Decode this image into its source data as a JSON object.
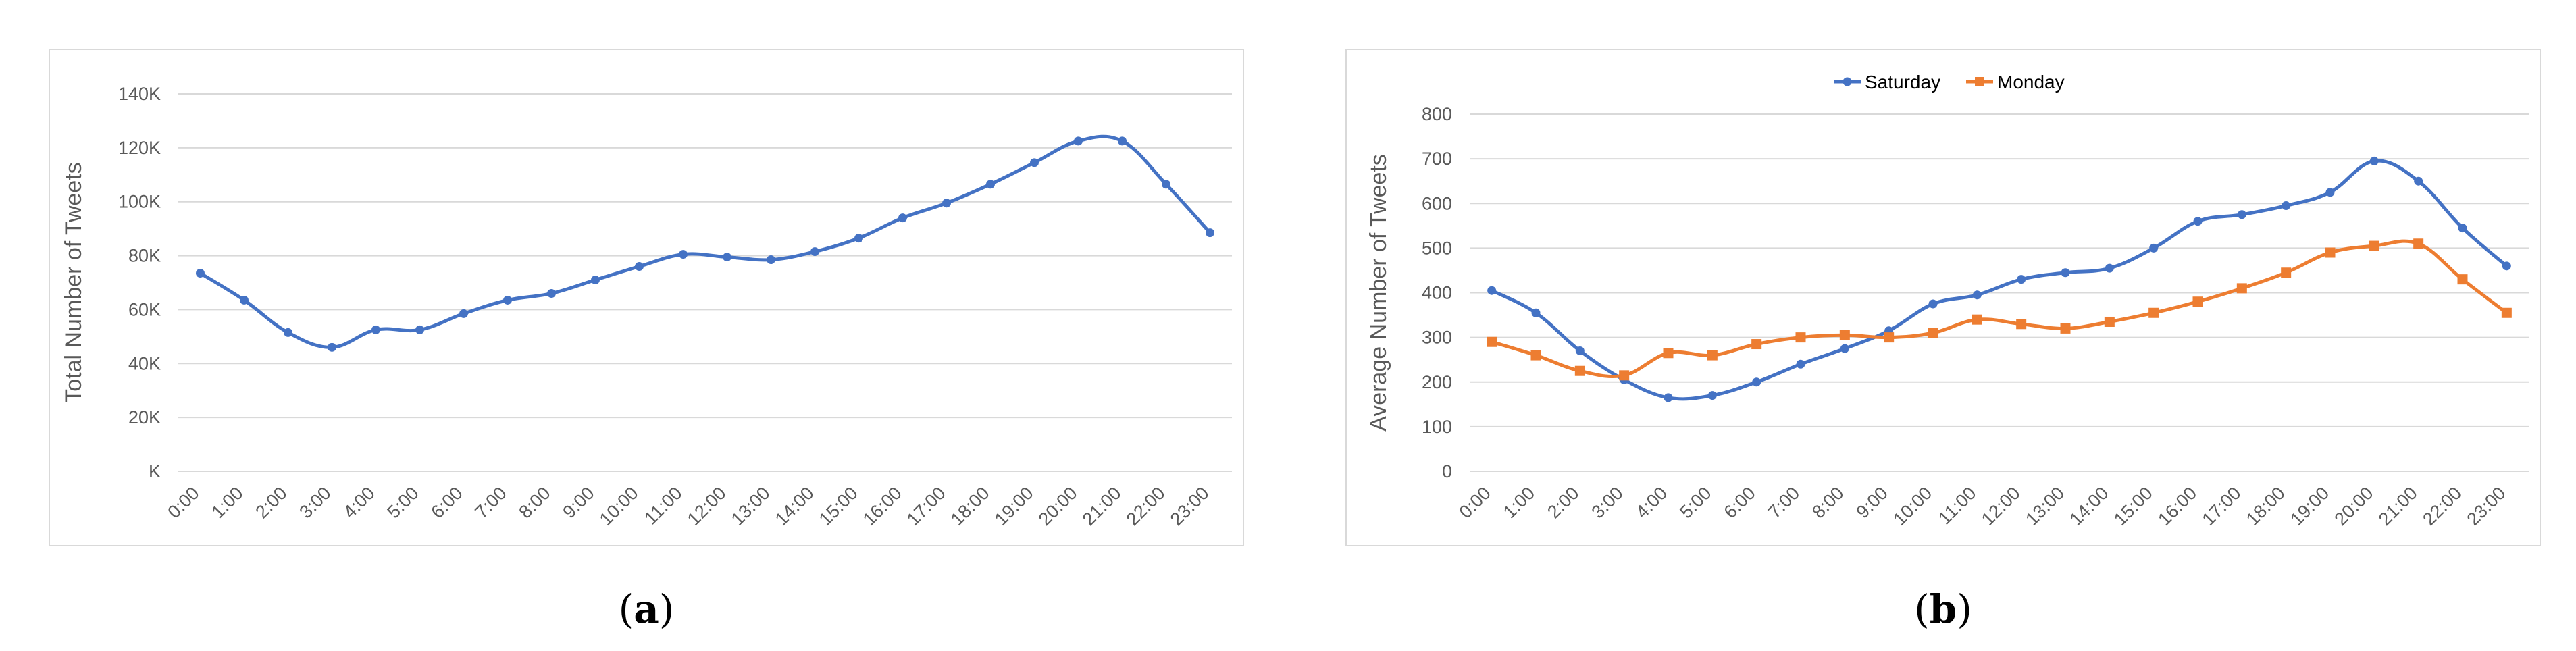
{
  "chart_data": [
    {
      "type": "line",
      "panel_label": "a",
      "ylabel": "Total Number of Tweets",
      "ylim": [
        0,
        140000
      ],
      "yticks": [
        {
          "v": 0,
          "label": "K"
        },
        {
          "v": 20000,
          "label": "20K"
        },
        {
          "v": 40000,
          "label": "40K"
        },
        {
          "v": 60000,
          "label": "60K"
        },
        {
          "v": 80000,
          "label": "80K"
        },
        {
          "v": 100000,
          "label": "100K"
        },
        {
          "v": 120000,
          "label": "120K"
        },
        {
          "v": 140000,
          "label": "140K"
        }
      ],
      "categories": [
        "0:00",
        "1:00",
        "2:00",
        "3:00",
        "4:00",
        "5:00",
        "6:00",
        "7:00",
        "8:00",
        "9:00",
        "10:00",
        "11:00",
        "12:00",
        "13:00",
        "14:00",
        "15:00",
        "16:00",
        "17:00",
        "18:00",
        "19:00",
        "20:00",
        "21:00",
        "22:00",
        "23:00"
      ],
      "grid": true,
      "series": [
        {
          "color": "#4472c4",
          "marker": "circle",
          "values": [
            73500,
            63500,
            51500,
            46000,
            52500,
            52500,
            58500,
            63500,
            66000,
            71000,
            76000,
            80500,
            79500,
            78500,
            81500,
            86500,
            94000,
            99500,
            106500,
            114500,
            122500,
            122500,
            106500,
            88500
          ]
        }
      ]
    },
    {
      "type": "line",
      "panel_label": "b",
      "ylabel": "Average Number of Tweets",
      "ylim": [
        0,
        800
      ],
      "yticks": [
        {
          "v": 0,
          "label": "0"
        },
        {
          "v": 100,
          "label": "100"
        },
        {
          "v": 200,
          "label": "200"
        },
        {
          "v": 300,
          "label": "300"
        },
        {
          "v": 400,
          "label": "400"
        },
        {
          "v": 500,
          "label": "500"
        },
        {
          "v": 600,
          "label": "600"
        },
        {
          "v": 700,
          "label": "700"
        },
        {
          "v": 800,
          "label": "800"
        }
      ],
      "categories": [
        "0:00",
        "1:00",
        "2:00",
        "3:00",
        "4:00",
        "5:00",
        "6:00",
        "7:00",
        "8:00",
        "9:00",
        "10:00",
        "11:00",
        "12:00",
        "13:00",
        "14:00",
        "15:00",
        "16:00",
        "17:00",
        "18:00",
        "19:00",
        "20:00",
        "21:00",
        "22:00",
        "23:00"
      ],
      "grid": true,
      "legend_position": "top",
      "series": [
        {
          "name": "Saturday",
          "color": "#4472c4",
          "marker": "circle",
          "values": [
            405,
            355,
            270,
            205,
            165,
            170,
            200,
            240,
            275,
            315,
            375,
            395,
            430,
            445,
            455,
            500,
            560,
            575,
            595,
            625,
            695,
            650,
            545,
            460
          ]
        },
        {
          "name": "Monday",
          "color": "#ed7d31",
          "marker": "square",
          "values": [
            290,
            260,
            225,
            215,
            265,
            260,
            285,
            300,
            305,
            300,
            310,
            340,
            330,
            320,
            335,
            355,
            380,
            410,
            445,
            490,
            505,
            510,
            430,
            355
          ]
        }
      ]
    }
  ]
}
